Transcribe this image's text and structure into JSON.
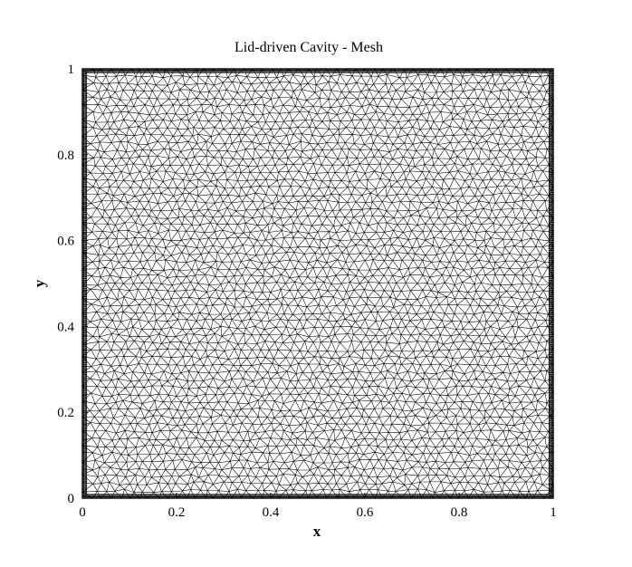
{
  "chart_data": {
    "type": "mesh",
    "title": "Lid-driven Cavity - Mesh",
    "xlabel": "x",
    "ylabel": "y",
    "xlim": [
      0,
      1
    ],
    "ylim": [
      0,
      1
    ],
    "xticks": [
      0,
      0.2,
      0.4,
      0.6,
      0.8,
      1
    ],
    "yticks": [
      0,
      0.2,
      0.4,
      0.6,
      0.8,
      1
    ],
    "xtick_labels": [
      "0",
      "0.2",
      "0.4",
      "0.6",
      "0.8",
      "1"
    ],
    "ytick_labels": [
      "0",
      "0.2",
      "0.4",
      "0.6",
      "0.8",
      "1"
    ],
    "mesh": {
      "element_type": "triangle",
      "interior_spacing": 0.02,
      "boundary_refined": true,
      "line_color": "#000000"
    },
    "grid": false
  }
}
